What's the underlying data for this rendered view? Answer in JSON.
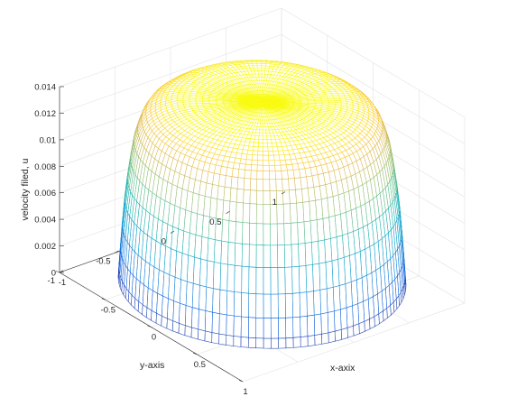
{
  "chart_data": {
    "type": "surface",
    "style": "3d-mesh",
    "colormap": "parula",
    "grid": true,
    "xlabel": "x-axix",
    "ylabel": "y-axis",
    "zlabel": "velocity filed, u",
    "xlim": [
      -1,
      1
    ],
    "ylim": [
      -1,
      1
    ],
    "zlim": [
      0,
      0.014
    ],
    "x_ticks": [
      "-1",
      "-0.5",
      "0",
      "0.5",
      "1"
    ],
    "y_ticks": [
      "-1",
      "-0.5",
      "0",
      "0.5",
      "1"
    ],
    "z_ticks": [
      "0",
      "0.002",
      "0.004",
      "0.006",
      "0.008",
      "0.01",
      "0.012",
      "0.014"
    ],
    "domain": "disk of radius 1",
    "surface_profile": {
      "r": [
        0,
        0.5,
        0.6,
        0.7,
        0.8,
        0.85,
        0.9,
        0.95,
        0.98,
        1.0
      ],
      "u": [
        0.014,
        0.014,
        0.0139,
        0.0136,
        0.013,
        0.0122,
        0.0105,
        0.007,
        0.0035,
        0.0005
      ]
    }
  }
}
